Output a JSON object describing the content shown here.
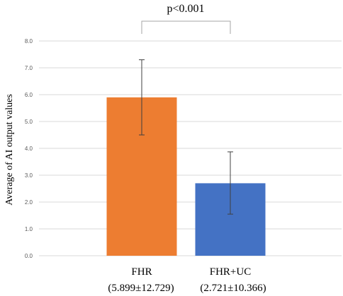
{
  "chart_data": {
    "type": "bar",
    "categories": [
      "FHR",
      "FHR+UC"
    ],
    "category_sublabels": [
      "(5.899±12.729)",
      "(2.721±10.366)"
    ],
    "values": [
      5.9,
      2.7
    ],
    "error_low": [
      4.5,
      1.55
    ],
    "error_high": [
      7.3,
      3.87
    ],
    "colors": [
      "#ed7d31",
      "#4472c4"
    ],
    "ylabel": "Average of AI output values",
    "ylim": [
      0,
      8
    ],
    "yticks": [
      "0.0",
      "1.0",
      "2.0",
      "3.0",
      "4.0",
      "5.0",
      "6.0",
      "7.0",
      "8.0"
    ],
    "grid": true,
    "annotation": "p<0.001"
  }
}
